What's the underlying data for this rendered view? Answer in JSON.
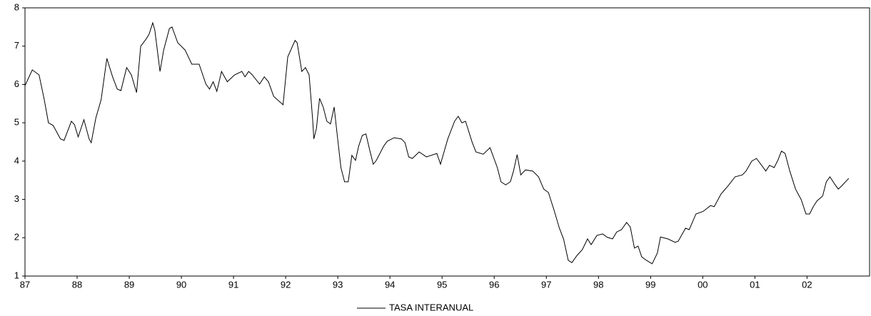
{
  "chart_data": {
    "type": "line",
    "x": [
      1987.0,
      1987.14,
      1987.27,
      1987.37,
      1987.45,
      1987.54,
      1987.68,
      1987.75,
      1987.89,
      1987.95,
      1988.02,
      1988.13,
      1988.23,
      1988.27,
      1988.36,
      1988.46,
      1988.57,
      1988.68,
      1988.77,
      1988.84,
      1988.95,
      1989.04,
      1989.14,
      1989.22,
      1989.32,
      1989.38,
      1989.45,
      1989.49,
      1989.59,
      1989.66,
      1989.77,
      1989.82,
      1989.93,
      1990.07,
      1990.2,
      1990.34,
      1990.47,
      1990.54,
      1990.61,
      1990.68,
      1990.77,
      1990.88,
      1991.02,
      1991.16,
      1991.22,
      1991.29,
      1991.36,
      1991.5,
      1991.59,
      1991.67,
      1991.77,
      1991.95,
      1992.04,
      1992.18,
      1992.22,
      1992.31,
      1992.38,
      1992.45,
      1992.52,
      1992.54,
      1992.59,
      1992.65,
      1992.72,
      1992.79,
      1992.86,
      1992.93,
      1992.99,
      1993.06,
      1993.13,
      1993.2,
      1993.27,
      1993.34,
      1993.4,
      1993.47,
      1993.54,
      1993.61,
      1993.68,
      1993.74,
      1993.88,
      1993.95,
      1994.08,
      1994.22,
      1994.29,
      1994.36,
      1994.43,
      1994.56,
      1994.7,
      1994.9,
      1994.97,
      1995.11,
      1995.24,
      1995.31,
      1995.38,
      1995.45,
      1995.58,
      1995.65,
      1995.79,
      1995.92,
      1996.06,
      1996.13,
      1996.22,
      1996.31,
      1996.37,
      1996.44,
      1996.51,
      1996.6,
      1996.74,
      1996.85,
      1996.95,
      1997.04,
      1997.15,
      1997.25,
      1997.33,
      1997.42,
      1997.49,
      1997.59,
      1997.69,
      1997.79,
      1997.86,
      1997.97,
      1998.08,
      1998.17,
      1998.27,
      1998.35,
      1998.44,
      1998.54,
      1998.61,
      1998.69,
      1998.76,
      1998.83,
      1998.92,
      1999.03,
      1999.13,
      1999.19,
      1999.33,
      1999.47,
      1999.53,
      1999.67,
      1999.74,
      1999.87,
      2000.01,
      2000.15,
      2000.22,
      2000.35,
      2000.49,
      2000.62,
      2000.76,
      2000.83,
      2000.94,
      2001.03,
      2001.13,
      2001.21,
      2001.28,
      2001.37,
      2001.44,
      2001.51,
      2001.58,
      2001.67,
      2001.78,
      2001.89,
      2001.98,
      2002.05,
      2002.12,
      2002.19,
      2002.3,
      2002.37,
      2002.44,
      2002.53,
      2002.6,
      2002.67,
      2002.8
    ],
    "series": [
      {
        "name": "TASA INTERANUAL",
        "color": "#000000",
        "values": [
          5.97,
          6.38,
          6.25,
          5.6,
          5.0,
          4.93,
          4.58,
          4.54,
          5.04,
          4.95,
          4.63,
          5.08,
          4.58,
          4.48,
          5.13,
          5.6,
          6.68,
          6.2,
          5.88,
          5.84,
          6.44,
          6.25,
          5.79,
          7.0,
          7.18,
          7.31,
          7.61,
          7.42,
          6.34,
          6.9,
          7.46,
          7.5,
          7.09,
          6.9,
          6.53,
          6.53,
          6.01,
          5.88,
          6.07,
          5.82,
          6.34,
          6.07,
          6.25,
          6.34,
          6.2,
          6.34,
          6.25,
          6.01,
          6.2,
          6.07,
          5.69,
          5.47,
          6.72,
          7.15,
          7.09,
          6.34,
          6.44,
          6.25,
          5.04,
          4.58,
          4.85,
          5.64,
          5.41,
          5.04,
          4.97,
          5.41,
          4.67,
          3.83,
          3.46,
          3.46,
          4.15,
          4.02,
          4.39,
          4.67,
          4.71,
          4.3,
          3.92,
          4.02,
          4.39,
          4.52,
          4.61,
          4.58,
          4.48,
          4.11,
          4.07,
          4.24,
          4.11,
          4.2,
          3.92,
          4.58,
          5.04,
          5.17,
          5.0,
          5.04,
          4.48,
          4.24,
          4.18,
          4.35,
          3.83,
          3.46,
          3.38,
          3.46,
          3.74,
          4.17,
          3.64,
          3.77,
          3.74,
          3.59,
          3.27,
          3.18,
          2.71,
          2.25,
          1.97,
          1.41,
          1.35,
          1.54,
          1.69,
          1.97,
          1.82,
          2.06,
          2.1,
          2.01,
          1.97,
          2.15,
          2.21,
          2.4,
          2.28,
          1.73,
          1.78,
          1.5,
          1.41,
          1.32,
          1.6,
          2.02,
          1.97,
          1.88,
          1.91,
          2.25,
          2.21,
          2.62,
          2.69,
          2.84,
          2.81,
          3.14,
          3.36,
          3.59,
          3.64,
          3.74,
          4.0,
          4.07,
          3.89,
          3.74,
          3.89,
          3.83,
          4.02,
          4.26,
          4.2,
          3.74,
          3.27,
          2.99,
          2.62,
          2.62,
          2.81,
          2.96,
          3.09,
          3.46,
          3.59,
          3.4,
          3.27,
          3.36,
          3.55
        ]
      }
    ],
    "xlim": [
      1987,
      2003.2
    ],
    "xticks": [
      {
        "value": 1987,
        "label": "87"
      },
      {
        "value": 1988,
        "label": "88"
      },
      {
        "value": 1989,
        "label": "89"
      },
      {
        "value": 1990,
        "label": "90"
      },
      {
        "value": 1991,
        "label": "91"
      },
      {
        "value": 1992,
        "label": "92"
      },
      {
        "value": 1993,
        "label": "93"
      },
      {
        "value": 1994,
        "label": "94"
      },
      {
        "value": 1995,
        "label": "95"
      },
      {
        "value": 1996,
        "label": "96"
      },
      {
        "value": 1997,
        "label": "97"
      },
      {
        "value": 1998,
        "label": "98"
      },
      {
        "value": 1999,
        "label": "99"
      },
      {
        "value": 2000,
        "label": "00"
      },
      {
        "value": 2001,
        "label": "01"
      },
      {
        "value": 2002,
        "label": "02"
      }
    ],
    "ylim": [
      1,
      8
    ],
    "yticks": [
      1,
      2,
      3,
      4,
      5,
      6,
      7,
      8
    ],
    "grid": false,
    "legend": "bottom"
  }
}
